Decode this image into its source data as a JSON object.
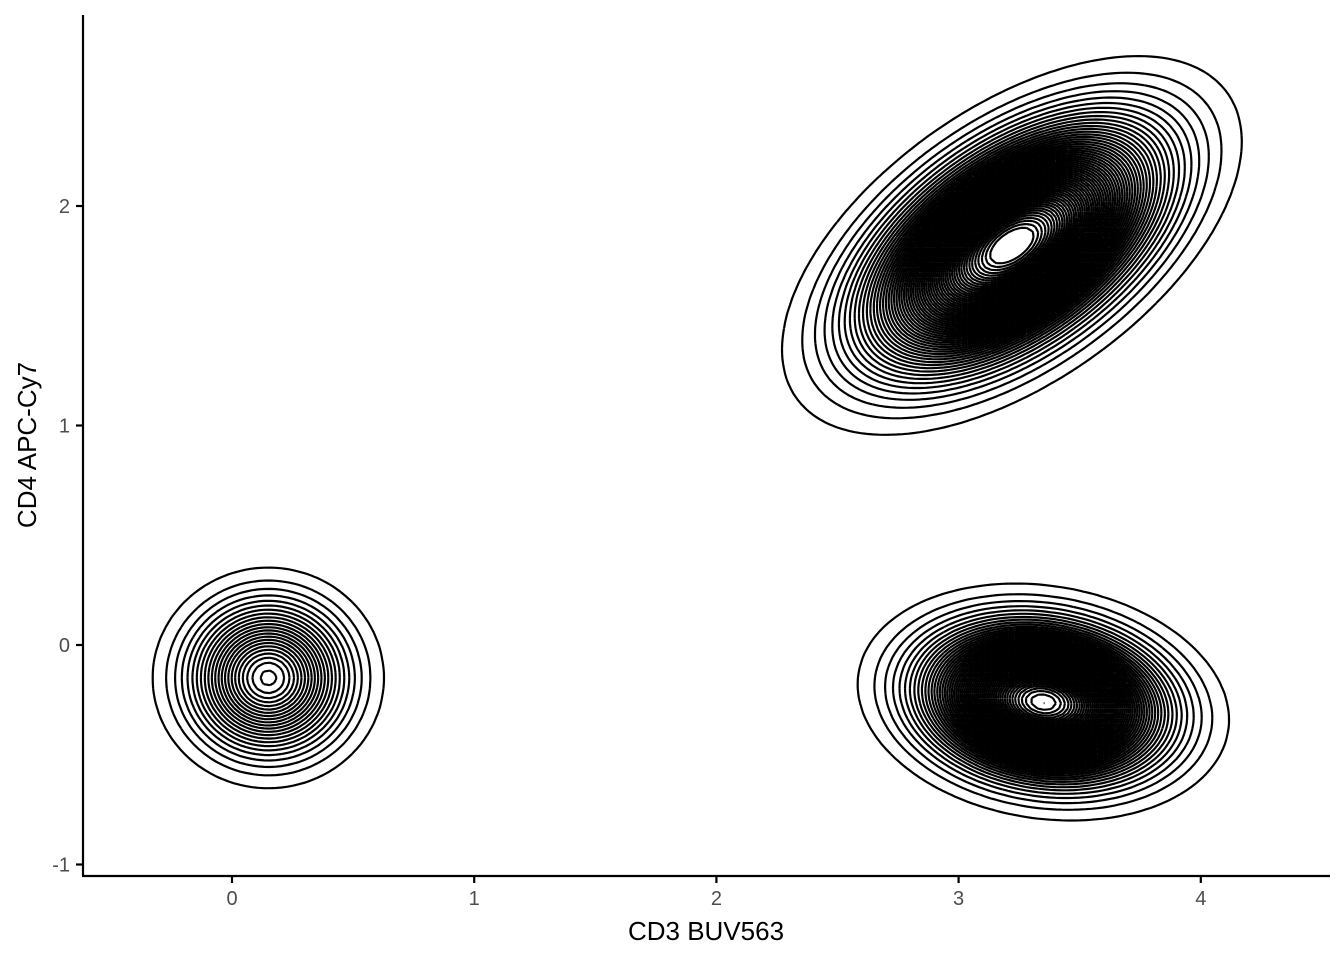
{
  "chart_data": {
    "type": "contour",
    "title": "",
    "xlabel": "CD3 BUV563",
    "ylabel": "CD4 APC-Cy7",
    "xlim": [
      -0.6,
      4.5
    ],
    "ylim": [
      -1.05,
      2.85
    ],
    "x_ticks": [
      0,
      1,
      2,
      3,
      4
    ],
    "y_ticks": [
      -1,
      0,
      1,
      2
    ],
    "x_tick_labels": [
      "0",
      "1",
      "2",
      "3",
      "4"
    ],
    "y_tick_labels": [
      "-1",
      "0",
      "1",
      "2"
    ],
    "grid": false,
    "legend": "none",
    "line_color": "#000000",
    "populations": [
      {
        "cx": 0.15,
        "cy": -0.15,
        "sx": 0.19,
        "sy": 0.2,
        "rho": 0.0,
        "weight": 0.1
      },
      {
        "cx": 3.22,
        "cy": 1.82,
        "sx": 0.33,
        "sy": 0.3,
        "rho": 0.55,
        "weight": 0.58
      },
      {
        "cx": 3.35,
        "cy": -0.26,
        "sx": 0.27,
        "sy": 0.19,
        "rho": -0.15,
        "weight": 0.32
      }
    ],
    "contour_levels": 60
  }
}
